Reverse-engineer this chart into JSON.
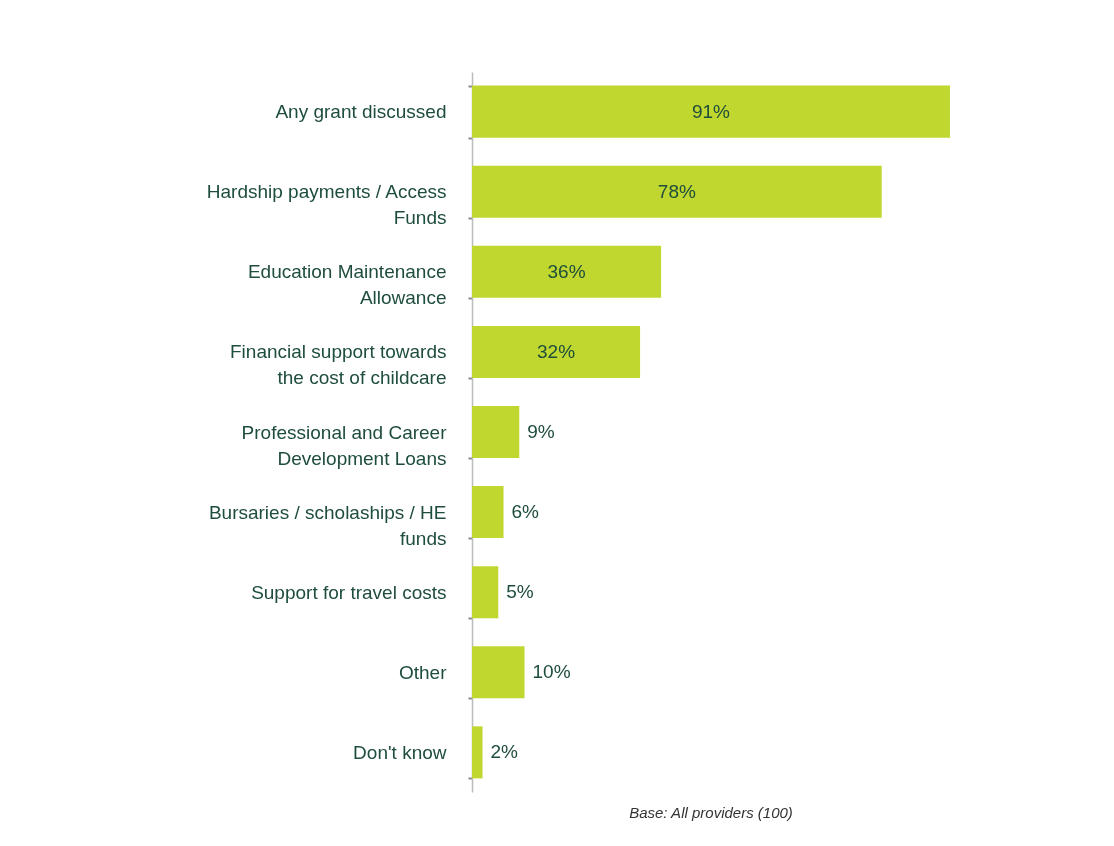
{
  "chart_data": {
    "type": "bar",
    "orientation": "horizontal",
    "categories": [
      "Any grant discussed",
      "Hardship payments / Access Funds",
      "Education Maintenance Allowance",
      "Financial support towards the cost of childcare",
      "Professional and Career Development Loans",
      "Bursaries / scholaships / HE funds",
      "Support for travel costs",
      "Other",
      "Don't know"
    ],
    "values": [
      91,
      78,
      36,
      32,
      9,
      6,
      5,
      10,
      2
    ],
    "value_labels": [
      "91%",
      "78%",
      "36%",
      "32%",
      "9%",
      "6%",
      "5%",
      "10%",
      "2%"
    ],
    "color": "#c0d72f",
    "annotations": [
      "Base: All providers (100)"
    ]
  }
}
